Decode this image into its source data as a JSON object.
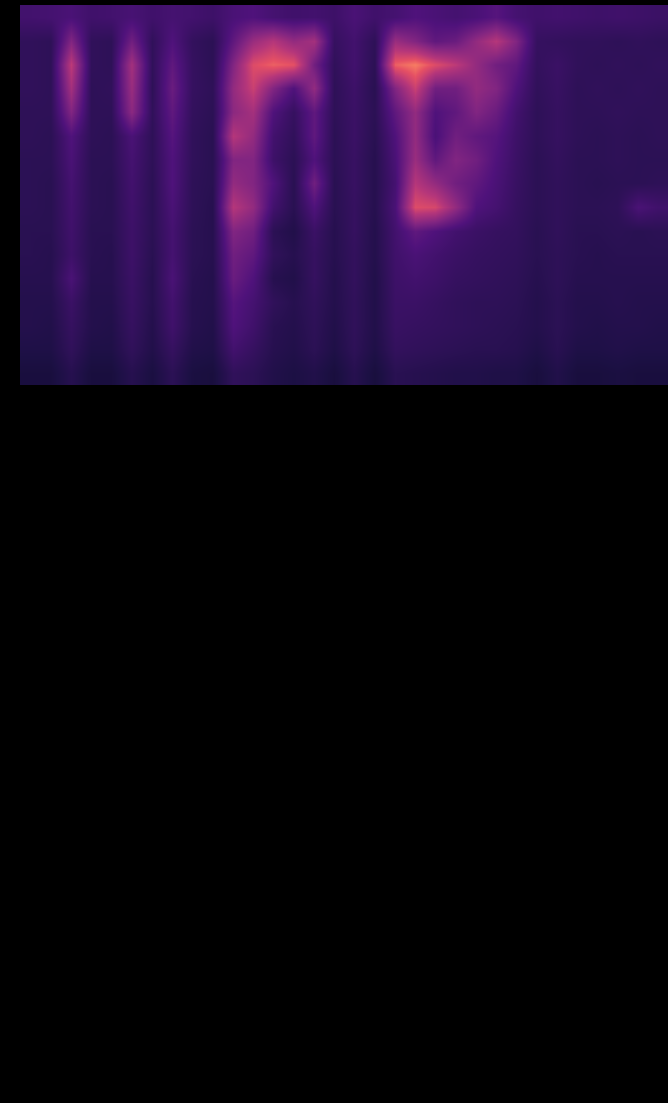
{
  "chart_data": {
    "type": "heatmap",
    "tick_labels": false,
    "zlim": [
      0,
      100
    ],
    "z": [
      [
        35,
        36,
        38,
        34,
        35,
        37,
        34,
        36,
        35,
        33,
        38,
        40,
        36,
        34,
        35,
        33,
        38,
        34,
        36,
        40,
        38,
        36,
        38,
        42,
        36,
        34,
        35,
        34,
        33,
        34,
        33,
        32
      ],
      [
        28,
        27,
        55,
        28,
        27,
        50,
        28,
        40,
        29,
        26,
        45,
        62,
        70,
        60,
        65,
        30,
        35,
        27,
        62,
        55,
        45,
        48,
        60,
        70,
        55,
        30,
        29,
        28,
        28,
        27,
        28,
        27
      ],
      [
        28,
        27,
        72,
        28,
        27,
        65,
        28,
        45,
        30,
        26,
        55,
        80,
        85,
        82,
        50,
        28,
        35,
        26,
        85,
        90,
        80,
        72,
        60,
        50,
        45,
        29,
        32,
        28,
        27,
        28,
        27,
        28
      ],
      [
        28,
        27,
        65,
        27,
        28,
        62,
        27,
        48,
        30,
        27,
        60,
        75,
        55,
        40,
        60,
        27,
        33,
        25,
        55,
        75,
        50,
        50,
        60,
        55,
        40,
        28,
        31,
        27,
        28,
        27,
        28,
        27
      ],
      [
        27,
        27,
        55,
        27,
        27,
        58,
        28,
        45,
        29,
        26,
        58,
        65,
        40,
        30,
        45,
        27,
        32,
        26,
        45,
        60,
        40,
        45,
        55,
        48,
        35,
        27,
        30,
        27,
        27,
        28,
        27,
        27
      ],
      [
        27,
        26,
        40,
        27,
        26,
        38,
        27,
        42,
        28,
        25,
        70,
        60,
        35,
        28,
        45,
        26,
        32,
        25,
        40,
        60,
        38,
        50,
        45,
        42,
        33,
        27,
        30,
        27,
        26,
        27,
        26,
        27
      ],
      [
        26,
        26,
        38,
        26,
        26,
        36,
        27,
        40,
        28,
        25,
        55,
        55,
        33,
        26,
        40,
        26,
        31,
        24,
        38,
        62,
        45,
        55,
        50,
        40,
        32,
        26,
        29,
        26,
        26,
        27,
        26,
        26
      ],
      [
        26,
        25,
        36,
        26,
        25,
        35,
        26,
        40,
        27,
        25,
        60,
        55,
        40,
        25,
        50,
        25,
        31,
        24,
        36,
        70,
        60,
        50,
        45,
        38,
        31,
        26,
        28,
        26,
        25,
        26,
        26,
        27
      ],
      [
        26,
        25,
        35,
        26,
        25,
        34,
        26,
        38,
        27,
        24,
        70,
        60,
        35,
        25,
        40,
        25,
        30,
        24,
        38,
        80,
        78,
        60,
        40,
        36,
        30,
        26,
        28,
        26,
        26,
        27,
        38,
        34
      ],
      [
        25,
        25,
        34,
        25,
        25,
        33,
        26,
        36,
        26,
        24,
        55,
        50,
        26,
        22,
        32,
        24,
        30,
        23,
        35,
        45,
        40,
        35,
        32,
        30,
        29,
        25,
        28,
        25,
        25,
        26,
        25,
        26
      ],
      [
        25,
        24,
        33,
        25,
        24,
        33,
        25,
        36,
        26,
        24,
        50,
        45,
        28,
        24,
        30,
        24,
        29,
        23,
        34,
        38,
        35,
        32,
        30,
        29,
        28,
        25,
        27,
        25,
        24,
        25,
        25,
        25
      ],
      [
        24,
        24,
        38,
        24,
        24,
        32,
        24,
        38,
        25,
        23,
        48,
        40,
        24,
        22,
        30,
        23,
        29,
        22,
        33,
        35,
        33,
        30,
        29,
        28,
        27,
        24,
        27,
        24,
        24,
        24,
        24,
        24
      ],
      [
        23,
        23,
        32,
        23,
        23,
        31,
        24,
        35,
        24,
        23,
        42,
        36,
        28,
        24,
        28,
        23,
        28,
        22,
        32,
        32,
        30,
        28,
        27,
        27,
        26,
        23,
        26,
        23,
        23,
        24,
        23,
        23
      ],
      [
        23,
        22,
        30,
        23,
        22,
        30,
        23,
        34,
        24,
        22,
        40,
        34,
        25,
        23,
        27,
        22,
        28,
        22,
        31,
        30,
        29,
        28,
        27,
        26,
        25,
        23,
        26,
        23,
        22,
        23,
        23,
        22
      ],
      [
        21,
        21,
        28,
        21,
        21,
        28,
        22,
        30,
        22,
        21,
        35,
        30,
        24,
        22,
        26,
        21,
        27,
        21,
        29,
        28,
        27,
        26,
        25,
        25,
        24,
        21,
        25,
        21,
        21,
        22,
        21,
        21
      ],
      [
        18,
        18,
        24,
        18,
        18,
        24,
        19,
        26,
        19,
        18,
        28,
        26,
        22,
        20,
        22,
        18,
        24,
        18,
        25,
        24,
        23,
        22,
        22,
        21,
        21,
        18,
        22,
        18,
        18,
        19,
        18,
        18
      ]
    ]
  }
}
